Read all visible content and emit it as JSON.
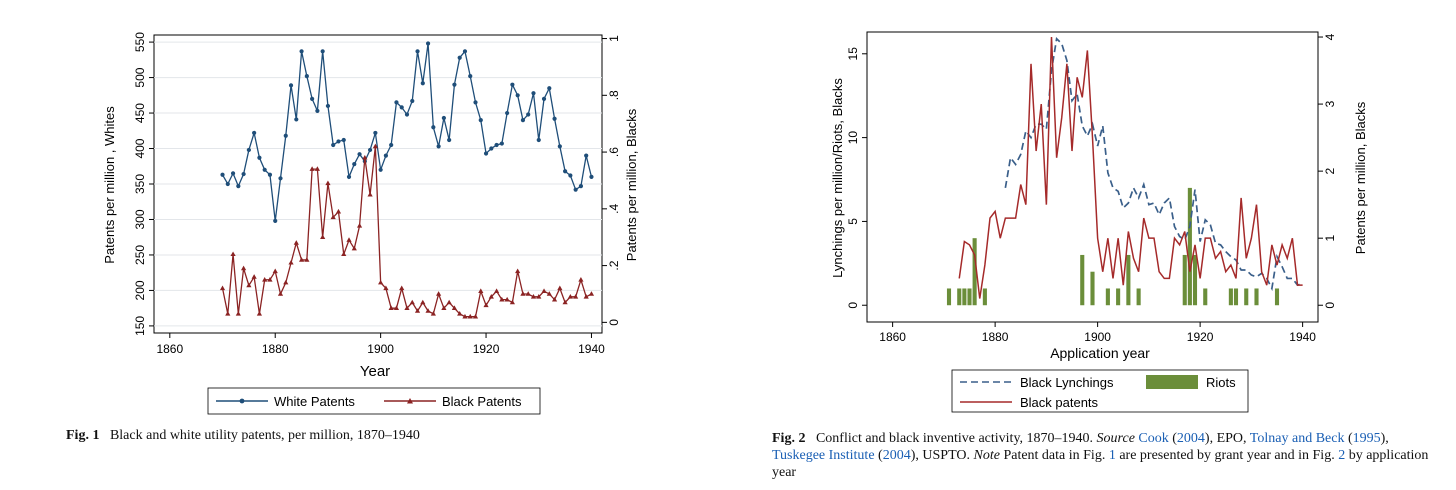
{
  "fig1": {
    "caption_label": "Fig. 1",
    "caption_text": "Black and white utility patents, per million, 1870–1940",
    "chart_data": {
      "type": "line",
      "title": "",
      "xlabel": "Year",
      "ylabel_left": "Patents per million , Whites",
      "ylabel_right": "Patents per million, Blacks",
      "xlim": [
        1857,
        1942
      ],
      "ylim_left": [
        140,
        560
      ],
      "ylim_right": [
        -0.0375,
        1.0125
      ],
      "x_ticks": [
        1860,
        1880,
        1900,
        1920,
        1940
      ],
      "y_ticks_left": [
        150,
        200,
        250,
        300,
        350,
        400,
        450,
        500,
        550
      ],
      "y_ticks_right": [
        0,
        0.2,
        0.4,
        0.6,
        0.8,
        1
      ],
      "y_tick_labels_right": [
        "0",
        ".2",
        ".4",
        ".6",
        ".8",
        "1"
      ],
      "legend_position": "bottom",
      "series": [
        {
          "name": "White Patents",
          "axis": "left",
          "color": "#1f4e79",
          "marker": "circle",
          "x": [
            1870,
            1871,
            1872,
            1873,
            1874,
            1875,
            1876,
            1877,
            1878,
            1879,
            1880,
            1881,
            1882,
            1883,
            1884,
            1885,
            1886,
            1887,
            1888,
            1889,
            1890,
            1891,
            1892,
            1893,
            1894,
            1895,
            1896,
            1897,
            1898,
            1899,
            1900,
            1901,
            1902,
            1903,
            1904,
            1905,
            1906,
            1907,
            1908,
            1909,
            1910,
            1911,
            1912,
            1913,
            1914,
            1915,
            1916,
            1917,
            1918,
            1919,
            1920,
            1921,
            1922,
            1923,
            1924,
            1925,
            1926,
            1927,
            1928,
            1929,
            1930,
            1931,
            1932,
            1933,
            1934,
            1935,
            1936,
            1937,
            1938,
            1939,
            1940
          ],
          "y": [
            363,
            350,
            365,
            347,
            364,
            398,
            422,
            387,
            370,
            363,
            298,
            358,
            418,
            489,
            441,
            537,
            502,
            470,
            453,
            537,
            460,
            405,
            410,
            412,
            360,
            378,
            392,
            382,
            398,
            422,
            370,
            390,
            405,
            465,
            458,
            448,
            467,
            537,
            492,
            548,
            430,
            403,
            443,
            412,
            490,
            528,
            537,
            502,
            465,
            440,
            393,
            400,
            405,
            407,
            450,
            490,
            475,
            440,
            448,
            478,
            412,
            470,
            485,
            442,
            403,
            368,
            362,
            342,
            347,
            390,
            360
          ]
        },
        {
          "name": "Black Patents",
          "axis": "right",
          "color": "#8b2323",
          "marker": "triangle",
          "x": [
            1870,
            1871,
            1872,
            1873,
            1874,
            1875,
            1876,
            1877,
            1878,
            1879,
            1880,
            1881,
            1882,
            1883,
            1884,
            1885,
            1886,
            1887,
            1888,
            1889,
            1890,
            1891,
            1892,
            1893,
            1894,
            1895,
            1896,
            1897,
            1898,
            1899,
            1900,
            1901,
            1902,
            1903,
            1904,
            1905,
            1906,
            1907,
            1908,
            1909,
            1910,
            1911,
            1912,
            1913,
            1914,
            1915,
            1916,
            1917,
            1918,
            1919,
            1920,
            1921,
            1922,
            1923,
            1924,
            1925,
            1926,
            1927,
            1928,
            1929,
            1930,
            1931,
            1932,
            1933,
            1934,
            1935,
            1936,
            1937,
            1938,
            1939,
            1940
          ],
          "y": [
            0.12,
            0.03,
            0.24,
            0.03,
            0.19,
            0.13,
            0.16,
            0.03,
            0.15,
            0.15,
            0.18,
            0.1,
            0.14,
            0.21,
            0.28,
            0.22,
            0.22,
            0.54,
            0.54,
            0.3,
            0.49,
            0.37,
            0.39,
            0.24,
            0.29,
            0.26,
            0.34,
            0.58,
            0.45,
            0.62,
            0.14,
            0.12,
            0.05,
            0.05,
            0.12,
            0.05,
            0.07,
            0.04,
            0.07,
            0.04,
            0.03,
            0.1,
            0.05,
            0.07,
            0.05,
            0.03,
            0.02,
            0.02,
            0.02,
            0.11,
            0.06,
            0.09,
            0.11,
            0.08,
            0.08,
            0.07,
            0.18,
            0.1,
            0.1,
            0.09,
            0.09,
            0.11,
            0.1,
            0.08,
            0.12,
            0.07,
            0.09,
            0.09,
            0.15,
            0.09,
            0.1
          ]
        }
      ]
    }
  },
  "fig2": {
    "caption_label": "Fig. 2",
    "caption_main": "Conflict and black inventive activity, 1870–1940.",
    "caption_source_label": "Source",
    "caption_ref_cook": "Cook",
    "caption_year_cook": "2004",
    "caption_epo": ", EPO,",
    "caption_ref_tolnay": "Tolnay and Beck",
    "caption_year_tolnay": "1995",
    "caption_ref_tuskegee": "Tuskegee Institute",
    "caption_year_tuskegee": "2004",
    "caption_uspto": ", USPTO.",
    "caption_note_label": "Note",
    "caption_note_a": "Patent data in Fig.",
    "caption_note_ref": "1",
    "caption_note_b": "are presented by grant year and in Fig.",
    "caption_note_ref2": "2",
    "caption_note_c": "by application year",
    "chart_data": {
      "type": "line",
      "title": "",
      "xlabel": "Application year",
      "ylabel_left": "Lynchings per million/Riots, Blacks",
      "ylabel_right": "Patents per million, Blacks",
      "xlim": [
        1855,
        1943
      ],
      "ylim_left": [
        -1,
        16.3
      ],
      "ylim_right": [
        -0.25,
        4.075
      ],
      "x_ticks": [
        1860,
        1880,
        1900,
        1920,
        1940
      ],
      "y_ticks_left": [
        0,
        5,
        10,
        15
      ],
      "y_ticks_right": [
        0,
        1,
        2,
        3,
        4
      ],
      "legend_position": "bottom",
      "legend_order": [
        "Black Lynchings",
        "Riots",
        "Black patents"
      ],
      "series": [
        {
          "name": "Black Lynchings",
          "axis": "left",
          "color": "#3a5f8a",
          "style": "dashed",
          "x": [
            1882,
            1883,
            1884,
            1885,
            1886,
            1887,
            1888,
            1889,
            1890,
            1891,
            1892,
            1893,
            1894,
            1895,
            1896,
            1897,
            1898,
            1899,
            1900,
            1901,
            1902,
            1903,
            1904,
            1905,
            1906,
            1907,
            1908,
            1909,
            1910,
            1911,
            1912,
            1913,
            1914,
            1915,
            1916,
            1917,
            1918,
            1919,
            1920,
            1921,
            1922,
            1923,
            1924,
            1925,
            1926,
            1927,
            1928,
            1929,
            1930,
            1931,
            1932,
            1933,
            1934,
            1935,
            1936,
            1937,
            1938,
            1939,
            1940
          ],
          "y": [
            7.0,
            8.8,
            8.4,
            9.0,
            10.4,
            10.0,
            10.8,
            10.8,
            10.5,
            14.0,
            15.9,
            15.6,
            14.6,
            12.2,
            12.6,
            10.7,
            10.1,
            10.8,
            9.5,
            10.7,
            7.9,
            7.0,
            6.8,
            5.8,
            6.1,
            7.0,
            6.4,
            7.2,
            6.0,
            6.1,
            5.4,
            6.1,
            6.4,
            4.7,
            4.1,
            3.9,
            4.7,
            6.9,
            3.8,
            5.1,
            4.8,
            3.7,
            3.6,
            3.2,
            2.9,
            2.7,
            2.1,
            2.1,
            1.8,
            1.7,
            1.9,
            1.6,
            1.0,
            2.9,
            2.3,
            1.6,
            1.6,
            1.2,
            1.3
          ]
        },
        {
          "name": "Black patents",
          "axis": "right",
          "color": "#a52a2a",
          "style": "solid",
          "x": [
            1873,
            1874,
            1875,
            1876,
            1877,
            1878,
            1879,
            1880,
            1881,
            1882,
            1883,
            1884,
            1885,
            1886,
            1887,
            1888,
            1889,
            1890,
            1891,
            1892,
            1893,
            1894,
            1895,
            1896,
            1897,
            1898,
            1899,
            1900,
            1901,
            1902,
            1903,
            1904,
            1905,
            1906,
            1907,
            1908,
            1909,
            1910,
            1911,
            1912,
            1913,
            1914,
            1915,
            1916,
            1917,
            1918,
            1919,
            1920,
            1921,
            1922,
            1923,
            1924,
            1925,
            1926,
            1927,
            1928,
            1929,
            1930,
            1931,
            1932,
            1933,
            1934,
            1935,
            1936,
            1937,
            1938,
            1939,
            1940
          ],
          "y": [
            0.4,
            0.95,
            0.9,
            0.75,
            0.1,
            0.6,
            1.3,
            1.4,
            1.0,
            1.3,
            1.3,
            1.3,
            1.8,
            1.5,
            3.6,
            2.3,
            3.0,
            1.5,
            4.0,
            2.2,
            2.8,
            3.6,
            2.3,
            3.4,
            3.1,
            3.8,
            2.5,
            1.0,
            0.5,
            1.0,
            0.4,
            1.0,
            0.3,
            1.1,
            0.7,
            0.5,
            1.3,
            1.0,
            1.0,
            0.5,
            0.4,
            0.4,
            1.0,
            0.9,
            1.1,
            0.5,
            0.9,
            0.4,
            1.0,
            1.0,
            0.7,
            0.8,
            0.5,
            0.6,
            0.4,
            1.6,
            0.7,
            1.0,
            1.5,
            0.5,
            0.3,
            0.9,
            0.6,
            0.9,
            0.7,
            1.0,
            0.3,
            0.3
          ]
        },
        {
          "name": "Riots",
          "axis": "left",
          "type": "bar",
          "color": "#6b8e3a",
          "x": [
            1871,
            1873,
            1874,
            1875,
            1876,
            1878,
            1897,
            1899,
            1902,
            1904,
            1906,
            1908,
            1917,
            1918,
            1919,
            1921,
            1926,
            1927,
            1929,
            1931,
            1935
          ],
          "y": [
            1,
            1,
            1,
            1,
            4,
            1,
            3,
            2,
            1,
            1,
            3,
            1,
            3,
            7,
            3,
            1,
            1,
            1,
            1,
            1,
            1
          ]
        }
      ]
    }
  }
}
